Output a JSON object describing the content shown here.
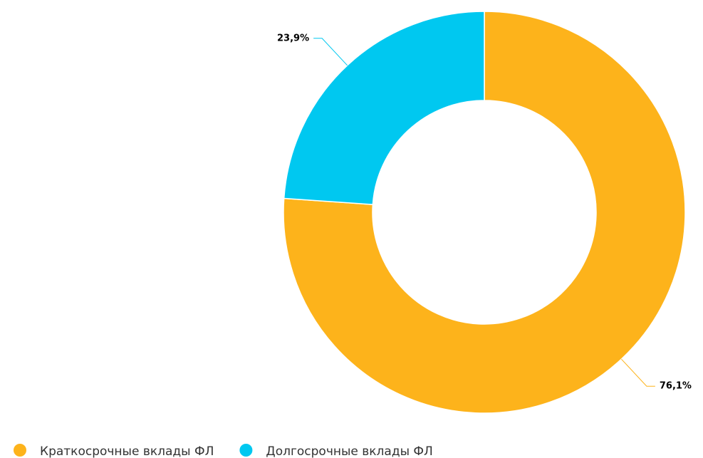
{
  "chart_data": {
    "type": "donut",
    "categories": [
      "Краткосрочные вклады ФЛ",
      "Долгосрочные вклады ФЛ"
    ],
    "values": [
      76.1,
      23.9
    ],
    "value_labels": [
      "76,1%",
      "23,9%"
    ],
    "colors": [
      "#fdb31b",
      "#00c8f0"
    ],
    "legend": "bottom-left"
  }
}
